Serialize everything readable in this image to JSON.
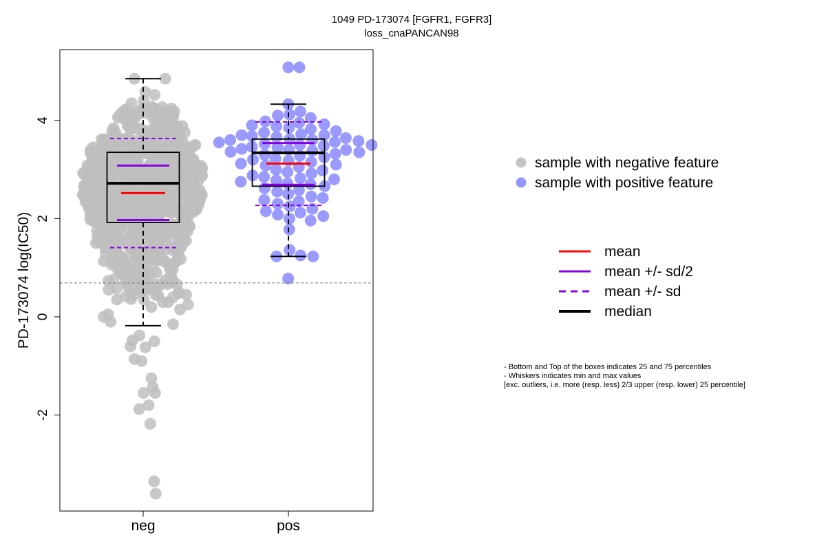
{
  "chart_data": {
    "type": "scatter",
    "title": "1049 PD-173074 [FGFR1, FGFR3]",
    "subtitle": "loss_cnaPANCAN98",
    "ylabel": "PD-173074 log(IC50)",
    "xlabel": "",
    "categories": [
      "neg",
      "pos"
    ],
    "ylim": [
      -3.9,
      5.5
    ],
    "yticks": [
      -2,
      0,
      2,
      4
    ],
    "ytick_labels": [
      "-2",
      "0",
      "2",
      "4"
    ],
    "reference_line": 0.69,
    "series": [
      {
        "name": "sample with negative feature",
        "color": "#bebebe",
        "n": 760,
        "box": {
          "q1": 1.92,
          "median": 2.72,
          "q3": 3.35,
          "whisker_low": -0.18,
          "whisker_high": 4.85
        },
        "mean": 2.52,
        "mean_minus_half_sd": 1.97,
        "mean_plus_half_sd": 3.08,
        "mean_minus_sd": 1.41,
        "mean_plus_sd": 3.63,
        "low_points": [
          -0.1,
          -0.15,
          -0.38,
          -0.5,
          -0.48,
          -0.62,
          -0.6,
          -0.86,
          -0.9,
          -1.25,
          -1.43,
          -1.55,
          -1.55,
          -1.8,
          -1.88,
          -2.18,
          -3.35,
          -3.6,
          0.2,
          0.15,
          0.05,
          0.0,
          0.25,
          0.3,
          0.35,
          0.45,
          0.48,
          0.5,
          0.4,
          0.55,
          0.52,
          0.6,
          0.66
        ],
        "high_points": [
          4.85,
          4.85,
          4.58,
          4.52,
          4.4,
          4.35,
          4.28,
          4.25,
          4.2,
          4.18,
          4.15,
          4.1
        ],
        "density": [
          [
            0.5,
            20
          ],
          [
            0.9,
            40
          ],
          [
            1.3,
            60
          ],
          [
            1.7,
            90
          ],
          [
            2.1,
            120
          ],
          [
            2.5,
            140
          ],
          [
            2.9,
            140
          ],
          [
            3.3,
            110
          ],
          [
            3.7,
            70
          ],
          [
            4.1,
            30
          ]
        ]
      },
      {
        "name": "sample with positive feature",
        "color": "#8a8aff",
        "n": 95,
        "box": {
          "q1": 2.66,
          "median": 3.34,
          "q3": 3.62,
          "whisker_low": 1.23,
          "whisker_high": 4.33
        },
        "mean": 3.12,
        "mean_minus_half_sd": 2.69,
        "mean_plus_half_sd": 3.54,
        "mean_minus_sd": 2.27,
        "mean_plus_sd": 3.97,
        "points": [
          5.08,
          5.08,
          4.33,
          4.18,
          4.12,
          4.1,
          4.05,
          3.98,
          3.95,
          3.92,
          3.9,
          3.88,
          3.85,
          3.82,
          3.78,
          3.75,
          3.72,
          3.7,
          3.7,
          3.68,
          3.66,
          3.64,
          3.62,
          3.6,
          3.6,
          3.58,
          3.56,
          3.55,
          3.52,
          3.5,
          3.5,
          3.48,
          3.46,
          3.45,
          3.42,
          3.4,
          3.4,
          3.38,
          3.36,
          3.35,
          3.32,
          3.3,
          3.28,
          3.25,
          3.22,
          3.2,
          3.18,
          3.15,
          3.12,
          3.1,
          3.08,
          3.05,
          3.0,
          2.98,
          2.95,
          2.92,
          2.88,
          2.85,
          2.82,
          2.8,
          2.78,
          2.75,
          2.72,
          2.7,
          2.66,
          2.62,
          2.58,
          2.55,
          2.5,
          2.45,
          2.42,
          2.38,
          2.35,
          2.3,
          2.25,
          2.2,
          2.15,
          2.12,
          2.08,
          2.05,
          2.0,
          1.96,
          1.78,
          1.36,
          1.25,
          1.23,
          1.23,
          0.78
        ]
      }
    ],
    "legend_points": [
      {
        "label": "sample with negative feature",
        "color": "#bebebe"
      },
      {
        "label": "sample with positive feature",
        "color": "#8a8aff"
      }
    ],
    "legend_lines": [
      {
        "label": "mean",
        "color": "#ff0000",
        "dash": false,
        "width": 3
      },
      {
        "label": "mean +/- sd/2",
        "color": "#8a00e6",
        "dash": false,
        "width": 3
      },
      {
        "label": "mean +/- sd",
        "color": "#8a00e6",
        "dash": true,
        "width": 3
      },
      {
        "label": "median",
        "color": "#000000",
        "dash": false,
        "width": 4
      }
    ],
    "notes": [
      "- Bottom and Top of the boxes indicates 25 and 75 percentiles",
      "- Whiskers indicates min and max values",
      "[exc. outliers, i.e. more (resp. less) 2/3 upper (resp. lower) 25 percentile]"
    ],
    "grid": false,
    "legend_position": "right"
  }
}
